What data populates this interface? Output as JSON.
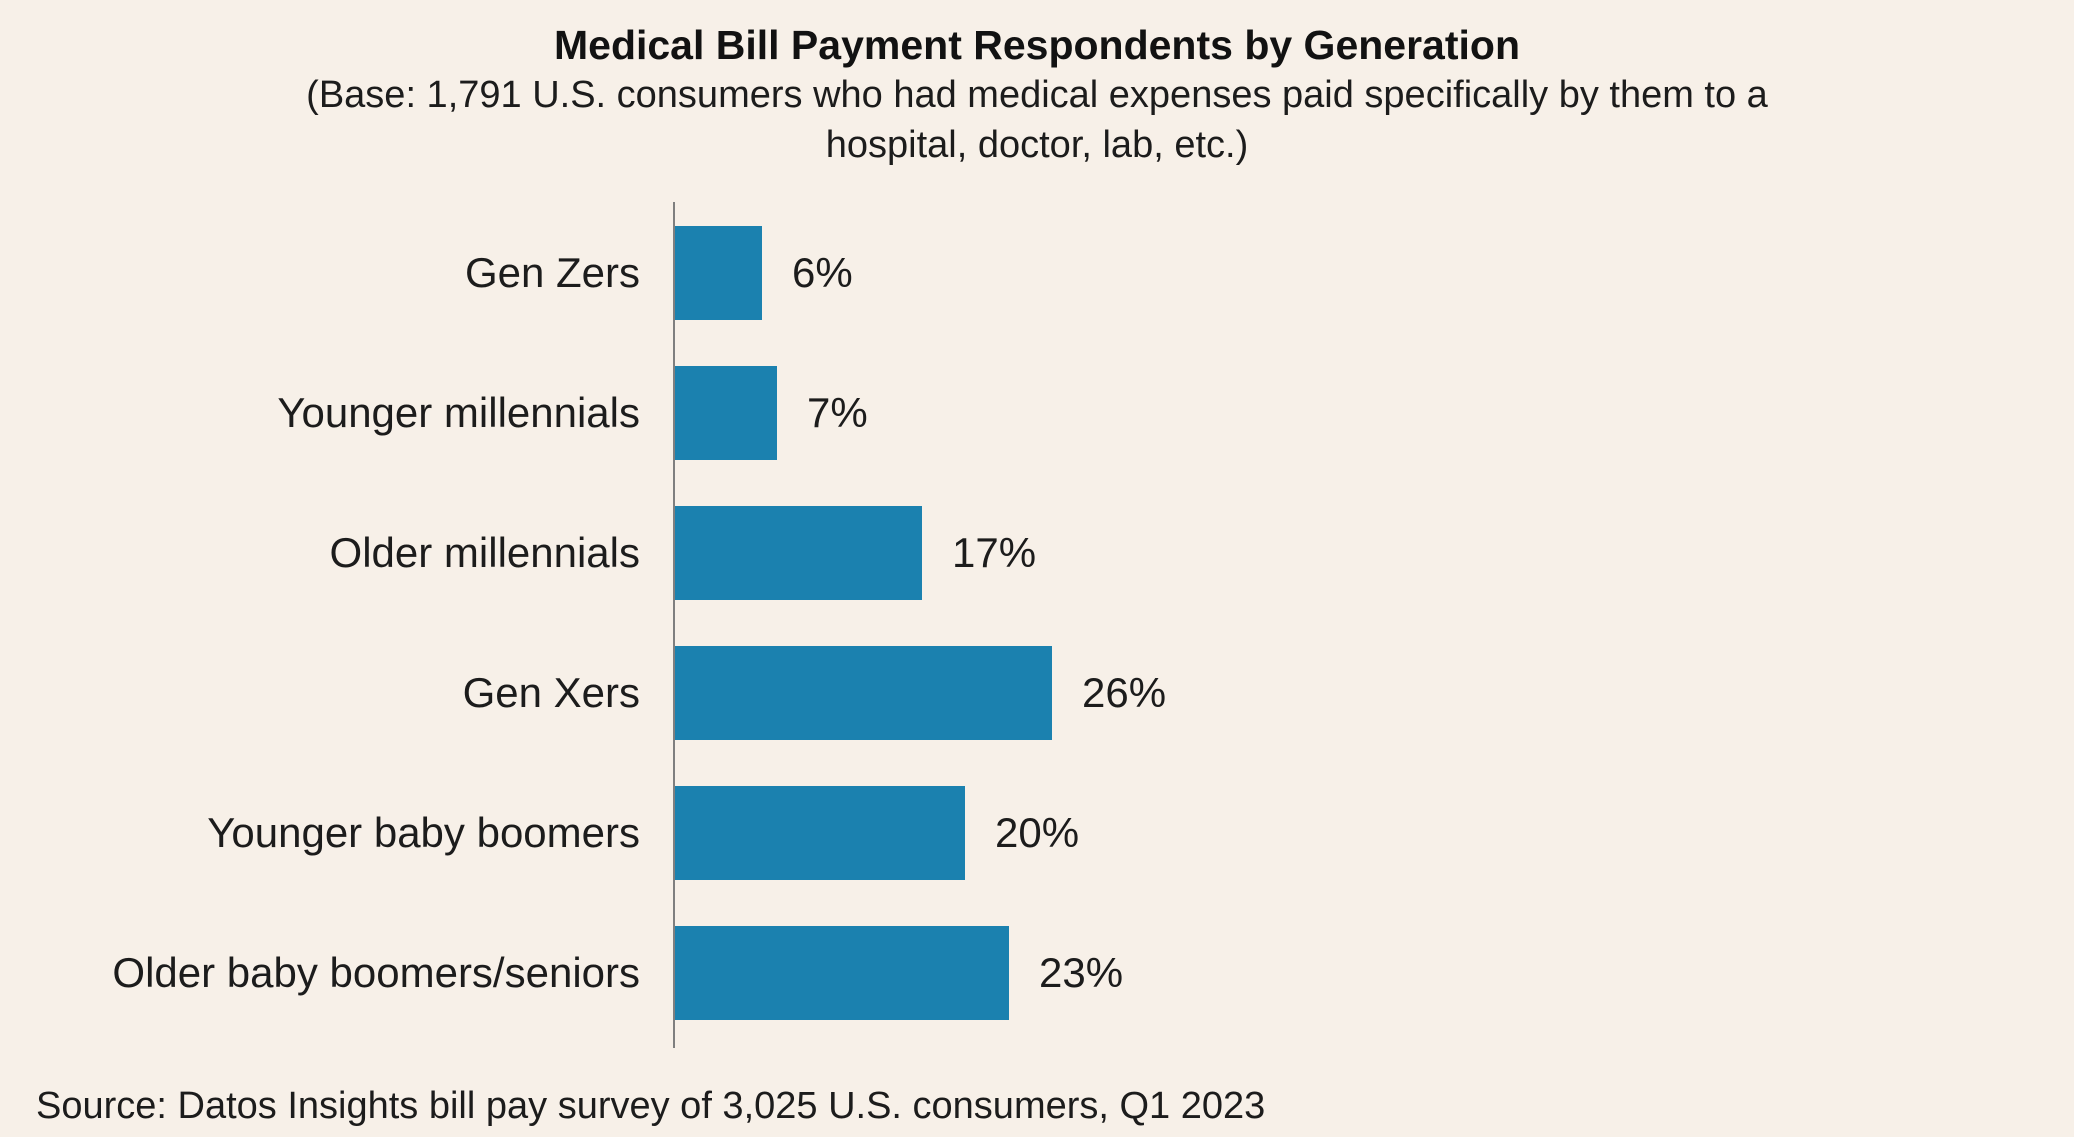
{
  "header": {
    "title": "Medical Bill Payment Respondents by Generation",
    "subtitle_lines": [
      "(Base: 1,791 U.S. consumers who had medical expenses paid specifically by them to a",
      "hospital, doctor, lab, etc.)"
    ]
  },
  "chart_data": {
    "type": "bar",
    "orientation": "horizontal",
    "title": "Medical Bill Payment Respondents by Generation",
    "subtitle": "(Base: 1,791 U.S. consumers who had medical expenses paid specifically by them to a hospital, doctor, lab, etc.)",
    "categories": [
      "Gen Zers",
      "Younger millennials",
      "Older millennials",
      "Gen Xers",
      "Younger baby boomers",
      "Older baby boomers/seniors"
    ],
    "values": [
      6,
      7,
      17,
      26,
      20,
      23
    ],
    "labels": [
      "6%",
      "7%",
      "17%",
      "26%",
      "20%",
      "23%"
    ],
    "xlabel": "",
    "ylabel": "",
    "xlim": [
      0,
      30
    ],
    "grid": false,
    "legend": "none",
    "value_labels_position": "right-of-bar",
    "bar_color": "#1B81AF",
    "axis_color": "#7F7F7F"
  },
  "footer": {
    "source": "Source: Datos Insights bill pay survey of 3,025 U.S. consumers, Q1 2023"
  },
  "colors": {
    "background": "#F7F0E8",
    "text": "#161616"
  }
}
